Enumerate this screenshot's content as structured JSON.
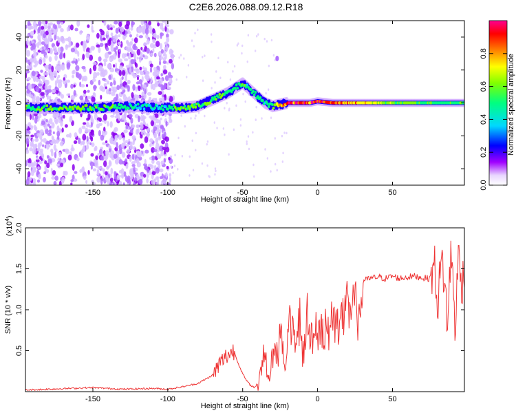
{
  "title": "C2E6.2026.088.09.12.R18",
  "chart_data": [
    {
      "type": "heatmap",
      "panel": "spectrogram",
      "xlabel": "Height of straight line (km)",
      "ylabel": "Frequency (Hz)",
      "xlim": [
        -195,
        98
      ],
      "ylim": [
        -50,
        50
      ],
      "xticks": [
        -150,
        -100,
        -50,
        0,
        50
      ],
      "yticks": [
        -40,
        -20,
        0,
        20,
        40
      ],
      "colorbar": {
        "label": "Normalized spectral amplitude",
        "range": [
          0.0,
          1.0
        ],
        "ticks": [
          "0.0",
          "0.2",
          "0.4",
          "0.6",
          "0.8"
        ],
        "colors": [
          "#ffffff",
          "#e8d6ff",
          "#a000ff",
          "#0000ff",
          "#00d8ff",
          "#00ff80",
          "#80ff00",
          "#ffff00",
          "#ff8000",
          "#ff0000",
          "#ff0090"
        ]
      },
      "ridge": {
        "x": [
          -195,
          -170,
          -150,
          -120,
          -105,
          -90,
          -80,
          -70,
          -60,
          -55,
          -50,
          -45,
          -40,
          -35,
          -30,
          -25,
          -20,
          -15,
          -10,
          -5,
          0,
          10,
          30,
          50,
          70,
          90,
          97
        ],
        "freq": [
          -3,
          -3,
          -3,
          -2,
          -3,
          -3,
          -2,
          2,
          6,
          9,
          12,
          8,
          4,
          0,
          -2,
          -1,
          0,
          0,
          0,
          0,
          1,
          0,
          0,
          0,
          0,
          0,
          0
        ],
        "amplitude": [
          0.5,
          0.6,
          0.6,
          0.4,
          0.4,
          0.6,
          0.55,
          0.55,
          0.55,
          0.5,
          0.5,
          0.45,
          0.45,
          0.45,
          0.5,
          0.8,
          0.9,
          0.95,
          0.95,
          0.9,
          0.95,
          0.9,
          0.8,
          0.6,
          0.55,
          0.5,
          0.5
        ]
      },
      "noise_region_km": [
        -195,
        -100
      ]
    },
    {
      "type": "line",
      "panel": "snr",
      "xlabel": "Height of straight line (km)",
      "ylabel": "SNR (10 * v/v)",
      "multiplier": "(x10",
      "multiplier_exp": "4",
      "xlim": [
        -195,
        98
      ],
      "ylim": [
        0,
        2.0
      ],
      "xticks": [
        -150,
        -100,
        -50,
        0,
        50
      ],
      "yticks": [
        "0.5",
        "1.0",
        "1.5",
        "2.0"
      ],
      "color": "#ee3333",
      "series": [
        {
          "name": "SNR",
          "x": [
            -195,
            -180,
            -165,
            -150,
            -130,
            -110,
            -100,
            -90,
            -80,
            -75,
            -70,
            -65,
            -60,
            -56,
            -52,
            -50,
            -48,
            -45,
            -42,
            -40,
            -38,
            -35,
            -32,
            -30,
            -27,
            -25,
            -22,
            -20,
            -18,
            -15,
            -12,
            -10,
            -7,
            -5,
            -2,
            0,
            3,
            5,
            8,
            10,
            13,
            15,
            18,
            20,
            25,
            30,
            35,
            40,
            45,
            50,
            55,
            60,
            65,
            70,
            75,
            78,
            80,
            83,
            85,
            87,
            89,
            90,
            92,
            94,
            96,
            98
          ],
          "y": [
            0.02,
            0.03,
            0.04,
            0.05,
            0.03,
            0.04,
            0.03,
            0.06,
            0.1,
            0.15,
            0.2,
            0.35,
            0.45,
            0.5,
            0.3,
            0.22,
            0.15,
            0.08,
            0.05,
            0.1,
            0.35,
            0.6,
            0.2,
            0.7,
            0.5,
            0.9,
            0.35,
            0.8,
            1.1,
            0.6,
            1.2,
            0.5,
            1.15,
            0.7,
            1.1,
            0.9,
            1.0,
            0.85,
            1.2,
            1.0,
            1.18,
            1.05,
            1.22,
            1.2,
            1.3,
            1.35,
            1.38,
            1.4,
            1.38,
            1.41,
            1.38,
            1.4,
            1.41,
            1.39,
            1.38,
            1.55,
            1.1,
            1.6,
            1.3,
            0.75,
            1.8,
            1.45,
            0.75,
            1.7,
            1.35,
            1.4
          ]
        }
      ]
    }
  ]
}
